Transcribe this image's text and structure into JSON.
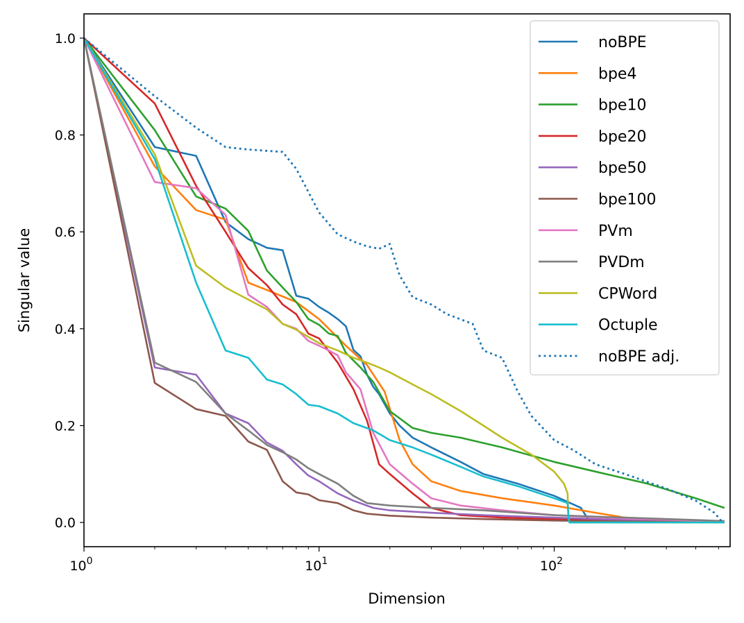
{
  "chart_data": {
    "type": "line",
    "title": "",
    "xlabel": "Dimension",
    "ylabel": "Singular value",
    "xscale": "log",
    "xlim": [
      1,
      560
    ],
    "ylim": [
      -0.05,
      1.05
    ],
    "grid": false,
    "legend_position": "top-right",
    "xticks": [
      {
        "value": 1,
        "base": "10",
        "exp": "0"
      },
      {
        "value": 10,
        "base": "10",
        "exp": "1"
      },
      {
        "value": 100,
        "base": "10",
        "exp": "2"
      }
    ],
    "yticks": [
      {
        "value": 0.0,
        "label": "0.0"
      },
      {
        "value": 0.2,
        "label": "0.2"
      },
      {
        "value": 0.4,
        "label": "0.4"
      },
      {
        "value": 0.6,
        "label": "0.6"
      },
      {
        "value": 0.8,
        "label": "0.8"
      },
      {
        "value": 1.0,
        "label": "1.0"
      }
    ],
    "series": [
      {
        "name": "noBPE",
        "color": "#1f77b4",
        "dash": "solid",
        "x": [
          1,
          2,
          3,
          4,
          5,
          6,
          7,
          8,
          9,
          10,
          11,
          12,
          13,
          14,
          15,
          16,
          17,
          18,
          20,
          22,
          25,
          30,
          40,
          50,
          70,
          100,
          130,
          140,
          160,
          200,
          300,
          530
        ],
        "y": [
          1.0,
          0.775,
          0.757,
          0.62,
          0.585,
          0.567,
          0.562,
          0.468,
          0.462,
          0.445,
          0.433,
          0.42,
          0.405,
          0.356,
          0.343,
          0.305,
          0.28,
          0.265,
          0.225,
          0.2,
          0.175,
          0.155,
          0.125,
          0.1,
          0.08,
          0.055,
          0.03,
          0.005,
          0.004,
          0.003,
          0.002,
          0.001
        ]
      },
      {
        "name": "bpe4",
        "color": "#ff7f0e",
        "dash": "solid",
        "x": [
          1,
          2,
          3,
          4,
          5,
          6,
          8,
          10,
          13,
          16,
          19,
          22,
          25,
          30,
          40,
          60,
          100,
          150,
          200,
          300,
          530
        ],
        "y": [
          1.0,
          0.735,
          0.645,
          0.625,
          0.495,
          0.48,
          0.455,
          0.42,
          0.365,
          0.325,
          0.27,
          0.17,
          0.12,
          0.085,
          0.065,
          0.05,
          0.035,
          0.02,
          0.01,
          0.005,
          0.001
        ]
      },
      {
        "name": "bpe10",
        "color": "#2ca02c",
        "dash": "solid",
        "x": [
          1,
          2,
          3,
          4,
          5,
          6,
          7,
          8,
          9,
          10,
          11,
          12,
          13,
          15,
          17,
          20,
          25,
          30,
          40,
          60,
          100,
          150,
          250,
          400,
          530
        ],
        "y": [
          1.0,
          0.81,
          0.673,
          0.648,
          0.602,
          0.52,
          0.485,
          0.455,
          0.42,
          0.408,
          0.39,
          0.385,
          0.35,
          0.32,
          0.29,
          0.23,
          0.195,
          0.185,
          0.175,
          0.155,
          0.125,
          0.105,
          0.08,
          0.05,
          0.03
        ]
      },
      {
        "name": "bpe20",
        "color": "#d62728",
        "dash": "solid",
        "x": [
          1,
          2,
          3,
          4,
          5,
          6,
          7,
          8,
          9,
          10,
          12,
          14,
          16,
          18,
          20,
          25,
          30,
          40,
          60,
          100,
          200,
          530
        ],
        "y": [
          1.0,
          0.865,
          0.695,
          0.6,
          0.525,
          0.49,
          0.45,
          0.43,
          0.39,
          0.38,
          0.33,
          0.275,
          0.21,
          0.12,
          0.1,
          0.06,
          0.03,
          0.015,
          0.01,
          0.007,
          0.005,
          0.001
        ]
      },
      {
        "name": "bpe50",
        "color": "#9467bd",
        "dash": "solid",
        "x": [
          1,
          2,
          3,
          4,
          5,
          6,
          7,
          8,
          9,
          10,
          12,
          14,
          17,
          20,
          30,
          50,
          100,
          200,
          530
        ],
        "y": [
          1.0,
          0.32,
          0.305,
          0.225,
          0.205,
          0.165,
          0.148,
          0.12,
          0.097,
          0.085,
          0.06,
          0.045,
          0.03,
          0.025,
          0.02,
          0.015,
          0.01,
          0.005,
          0.001
        ]
      },
      {
        "name": "bpe100",
        "color": "#8c564b",
        "dash": "solid",
        "x": [
          1,
          2,
          3,
          4,
          5,
          6,
          7,
          8,
          9,
          10,
          12,
          14,
          16,
          20,
          30,
          50,
          100,
          200,
          530
        ],
        "y": [
          1.0,
          0.288,
          0.234,
          0.22,
          0.167,
          0.15,
          0.085,
          0.062,
          0.058,
          0.046,
          0.04,
          0.025,
          0.018,
          0.014,
          0.01,
          0.007,
          0.004,
          0.002,
          0.001
        ]
      },
      {
        "name": "PVm",
        "color": "#e377c2",
        "dash": "solid",
        "x": [
          1,
          2,
          3,
          4,
          5,
          6,
          7,
          8,
          9,
          10,
          11,
          12,
          13,
          15,
          17,
          20,
          25,
          30,
          40,
          60,
          100,
          200,
          530
        ],
        "y": [
          1.0,
          0.703,
          0.69,
          0.635,
          0.47,
          0.445,
          0.41,
          0.4,
          0.375,
          0.365,
          0.355,
          0.345,
          0.31,
          0.275,
          0.185,
          0.12,
          0.08,
          0.05,
          0.035,
          0.025,
          0.015,
          0.008,
          0.002
        ]
      },
      {
        "name": "PVDm",
        "color": "#7f7f7f",
        "dash": "solid",
        "x": [
          1,
          2,
          3,
          4,
          5,
          6,
          7,
          8,
          9,
          10,
          12,
          14,
          16,
          20,
          30,
          50,
          100,
          200,
          530
        ],
        "y": [
          1.0,
          0.33,
          0.29,
          0.225,
          0.19,
          0.16,
          0.145,
          0.13,
          0.112,
          0.1,
          0.08,
          0.055,
          0.04,
          0.035,
          0.03,
          0.025,
          0.015,
          0.01,
          0.003
        ]
      },
      {
        "name": "CPWord",
        "color": "#bcbd22",
        "dash": "solid",
        "x": [
          1,
          2,
          3,
          4,
          5,
          6,
          7,
          8,
          10,
          12,
          14,
          16,
          18,
          20,
          25,
          30,
          40,
          50,
          60,
          80,
          100,
          110,
          114,
          115,
          116,
          200,
          530
        ],
        "y": [
          1.0,
          0.76,
          0.53,
          0.485,
          0.46,
          0.44,
          0.41,
          0.398,
          0.37,
          0.355,
          0.34,
          0.33,
          0.32,
          0.31,
          0.285,
          0.265,
          0.23,
          0.2,
          0.175,
          0.14,
          0.105,
          0.08,
          0.06,
          0.01,
          0.0,
          0.0,
          0.0
        ]
      },
      {
        "name": "Octuple",
        "color": "#17becf",
        "dash": "solid",
        "x": [
          1,
          2,
          3,
          4,
          5,
          6,
          7,
          8,
          9,
          10,
          12,
          14,
          17,
          20,
          25,
          30,
          40,
          50,
          70,
          100,
          114,
          115,
          116,
          200,
          530
        ],
        "y": [
          1.0,
          0.75,
          0.495,
          0.355,
          0.34,
          0.295,
          0.285,
          0.265,
          0.243,
          0.24,
          0.225,
          0.205,
          0.19,
          0.17,
          0.155,
          0.14,
          0.115,
          0.095,
          0.075,
          0.05,
          0.04,
          0.01,
          0.0,
          0.0,
          0.0
        ]
      },
      {
        "name": "noBPE adj.",
        "color": "#1f77b4",
        "dash": "dotted",
        "x": [
          1,
          2,
          3,
          4,
          5,
          7,
          8,
          10,
          12,
          14,
          16,
          18,
          20,
          22,
          25,
          30,
          35,
          45,
          50,
          60,
          70,
          80,
          100,
          120,
          150,
          200,
          300,
          400,
          480,
          520
        ],
        "y": [
          1.0,
          0.88,
          0.815,
          0.775,
          0.77,
          0.765,
          0.73,
          0.64,
          0.595,
          0.58,
          0.57,
          0.565,
          0.575,
          0.51,
          0.465,
          0.45,
          0.43,
          0.41,
          0.355,
          0.34,
          0.27,
          0.22,
          0.17,
          0.15,
          0.12,
          0.1,
          0.07,
          0.045,
          0.02,
          0.0
        ]
      }
    ]
  }
}
